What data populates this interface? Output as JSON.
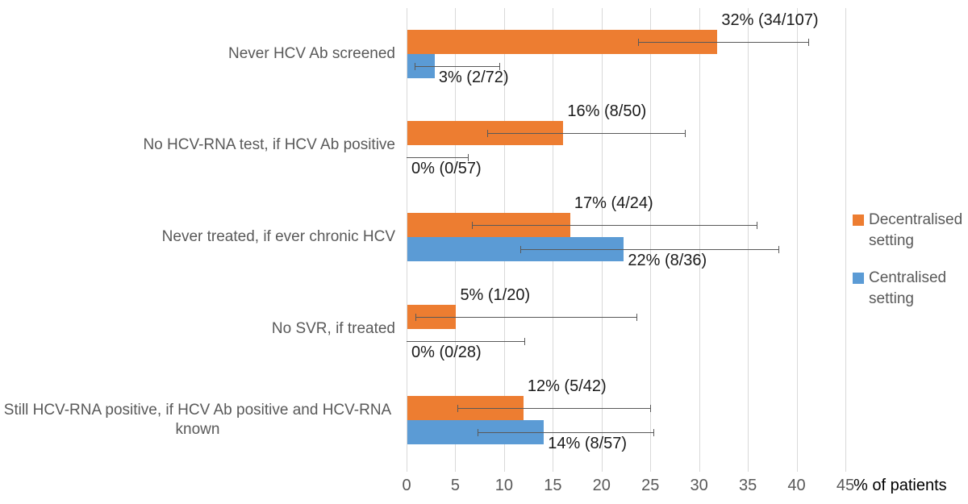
{
  "chart_data": {
    "type": "bar",
    "orientation": "horizontal",
    "title": "",
    "xlabel": "% of patients",
    "ylabel": "",
    "xlim": [
      0,
      45
    ],
    "xticks": [
      0,
      5,
      10,
      15,
      20,
      25,
      30,
      35,
      40,
      45
    ],
    "grid": true,
    "legend_position": "right",
    "categories": [
      "Never HCV Ab screened",
      "No HCV-RNA test, if HCV Ab positive",
      "Never treated, if ever chronic HCV",
      "No SVR, if treated",
      "Still HCV-RNA positive, if HCV Ab positive and HCV-RNA known"
    ],
    "series": [
      {
        "name": "Decentralised setting",
        "color": "#ED7D31",
        "values": [
          31.8,
          16.0,
          16.7,
          5.0,
          11.9
        ],
        "data_labels": [
          "32% (34/107)",
          "16% (8/50)",
          "17% (4/24)",
          "5% (1/20)",
          "12% (5/42)"
        ],
        "error_low": [
          23.7,
          8.3,
          6.7,
          0.9,
          5.2
        ],
        "error_high": [
          41.2,
          28.5,
          35.9,
          23.6,
          25.0
        ]
      },
      {
        "name": "Centralised setting",
        "color": "#5B9BD5",
        "values": [
          2.8,
          0.0,
          22.2,
          0.0,
          14.0
        ],
        "data_labels": [
          "3% (2/72)",
          "0% (0/57)",
          "22% (8/36)",
          "0% (0/28)",
          "14% (8/57)"
        ],
        "error_low": [
          0.8,
          0.0,
          11.7,
          0.0,
          7.3
        ],
        "error_high": [
          9.5,
          6.3,
          38.1,
          12.1,
          25.3
        ]
      }
    ],
    "colors": {
      "gridline": "#D9D9D9",
      "axis_text": "#595959",
      "data_label": "#1A1A1A",
      "error_bar": "#595959",
      "background": "#FFFFFF"
    }
  }
}
